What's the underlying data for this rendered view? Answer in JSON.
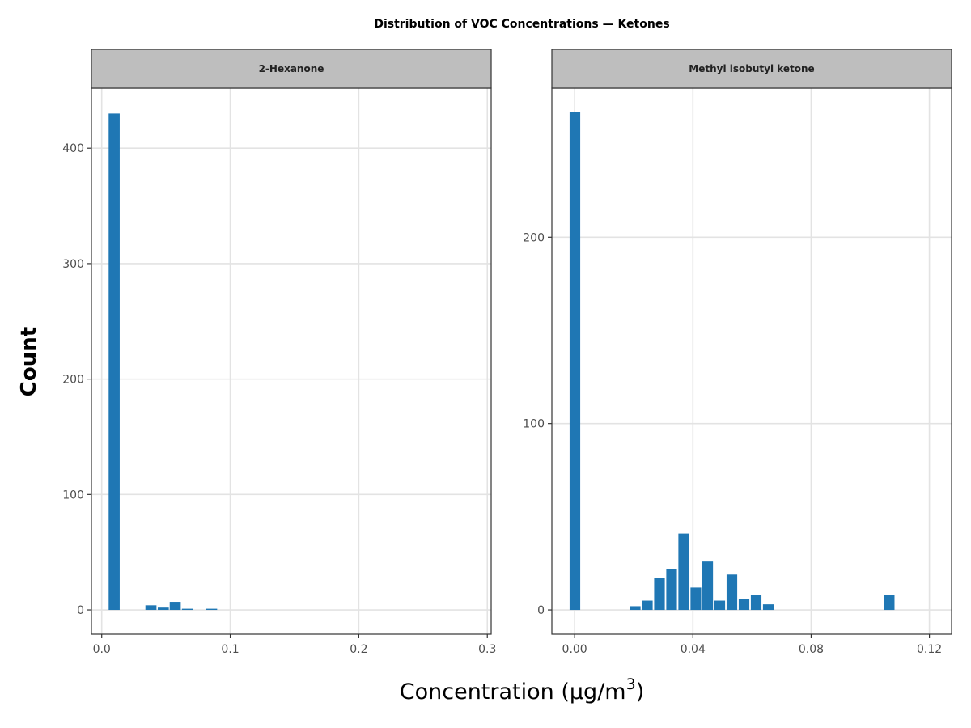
{
  "chart_data": {
    "type": "bar",
    "title": "Distribution of VOC Concentrations — Ketones",
    "xlabel": "Concentration (µg/m",
    "xlabel_sup": "3",
    "xlabel_tail": ")",
    "ylabel": "Count",
    "bar_color": "#1f77b4",
    "grid": true,
    "panels": [
      {
        "name": "2-Hexanone",
        "xlim": [
          -0.008,
          0.303
        ],
        "ylim": [
          -21,
          452
        ],
        "x_ticks": [
          0.0,
          0.1,
          0.2,
          0.3
        ],
        "x_tick_labels": [
          "0.0",
          "0.1",
          "0.2",
          "0.3"
        ],
        "y_ticks": [
          0,
          100,
          200,
          300,
          400
        ],
        "y_tick_labels": [
          "0",
          "100",
          "200",
          "300",
          "400"
        ],
        "bin_width": 0.0086,
        "bars": [
          {
            "x": 0.0097,
            "count": 430
          },
          {
            "x": 0.0383,
            "count": 4
          },
          {
            "x": 0.0479,
            "count": 2
          },
          {
            "x": 0.0572,
            "count": 7
          },
          {
            "x": 0.0667,
            "count": 1
          },
          {
            "x": 0.0855,
            "count": 1
          }
        ]
      },
      {
        "name": "Methyl isobutyl ketone",
        "xlim": [
          -0.0077,
          0.1275
        ],
        "ylim": [
          -13,
          280
        ],
        "x_ticks": [
          0.0,
          0.04,
          0.08,
          0.12
        ],
        "x_tick_labels": [
          "0.00",
          "0.04",
          "0.08",
          "0.12"
        ],
        "y_ticks": [
          0,
          100,
          200
        ],
        "y_tick_labels": [
          "0",
          "100",
          "200"
        ],
        "bin_width": 0.0036,
        "bars": [
          {
            "x": 0.0001,
            "count": 267
          },
          {
            "x": 0.0205,
            "count": 2
          },
          {
            "x": 0.0246,
            "count": 5
          },
          {
            "x": 0.0287,
            "count": 17
          },
          {
            "x": 0.0328,
            "count": 22
          },
          {
            "x": 0.0369,
            "count": 41
          },
          {
            "x": 0.041,
            "count": 12
          },
          {
            "x": 0.045,
            "count": 26
          },
          {
            "x": 0.0491,
            "count": 5
          },
          {
            "x": 0.0532,
            "count": 19
          },
          {
            "x": 0.0573,
            "count": 6
          },
          {
            "x": 0.0614,
            "count": 8
          },
          {
            "x": 0.0655,
            "count": 3
          },
          {
            "x": 0.1064,
            "count": 8
          }
        ]
      }
    ]
  }
}
